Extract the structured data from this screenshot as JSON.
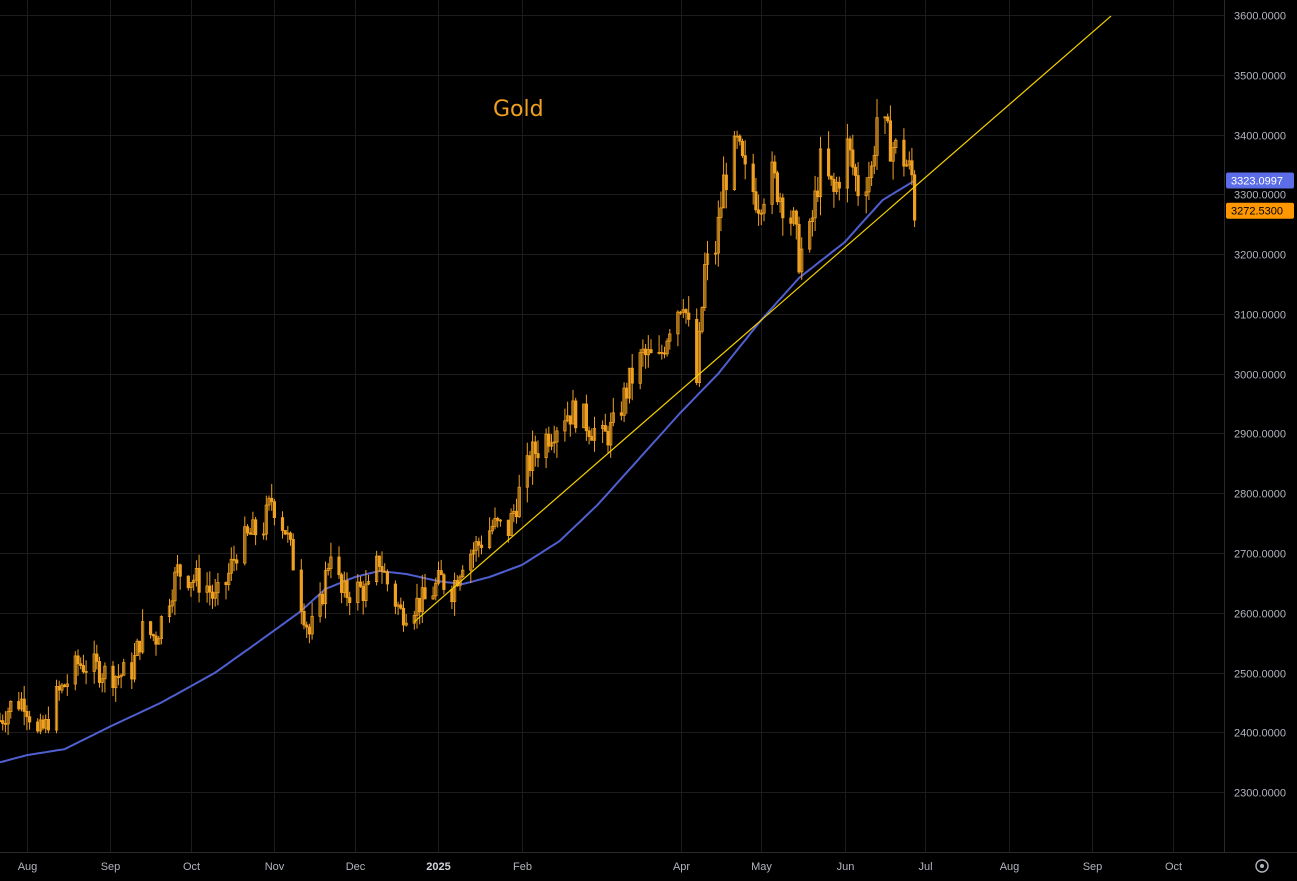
{
  "chart_data": {
    "type": "candlestick",
    "title": "Gold",
    "y_ticks": [
      2300,
      2400,
      2500,
      2600,
      2700,
      2800,
      2900,
      3000,
      3100,
      3200,
      3300,
      3400,
      3500,
      3600
    ],
    "y_tick_labels": [
      "2300.0000",
      "2400.0000",
      "2500.0000",
      "2600.0000",
      "2700.0000",
      "2800.0000",
      "2900.0000",
      "3000.0000",
      "3100.0000",
      "3200.0000",
      "3300.0000",
      "3400.0000",
      "3500.0000",
      "3600.0000"
    ],
    "ylim": [
      2200,
      3625
    ],
    "x_range": [
      "2024-07-22",
      "2025-10-20"
    ],
    "x_ticks": [
      {
        "date": "2024-08-01",
        "label": "Aug"
      },
      {
        "date": "2024-09-01",
        "label": "Sep"
      },
      {
        "date": "2024-10-01",
        "label": "Oct"
      },
      {
        "date": "2024-11-01",
        "label": "Nov"
      },
      {
        "date": "2024-12-01",
        "label": "Dec"
      },
      {
        "date": "2025-01-01",
        "label": "2025",
        "bold": true
      },
      {
        "date": "2025-02-01",
        "label": "Feb"
      },
      {
        "date": "2025-04-01",
        "label": "Apr"
      },
      {
        "date": "2025-05-01",
        "label": "May"
      },
      {
        "date": "2025-06-01",
        "label": "Jun"
      },
      {
        "date": "2025-07-01",
        "label": "Jul"
      },
      {
        "date": "2025-08-01",
        "label": "Aug"
      },
      {
        "date": "2025-09-01",
        "label": "Sep"
      },
      {
        "date": "2025-10-01",
        "label": "Oct"
      }
    ],
    "price_close_series": [
      [
        "2024-07-22",
        2420
      ],
      [
        "2024-07-26",
        2445
      ],
      [
        "2024-07-31",
        2455
      ],
      [
        "2024-08-05",
        2395
      ],
      [
        "2024-08-08",
        2410
      ],
      [
        "2024-08-12",
        2460
      ],
      [
        "2024-08-16",
        2485
      ],
      [
        "2024-08-20",
        2515
      ],
      [
        "2024-08-26",
        2510
      ],
      [
        "2024-08-30",
        2500
      ],
      [
        "2024-09-04",
        2495
      ],
      [
        "2024-09-09",
        2505
      ],
      [
        "2024-09-13",
        2570
      ],
      [
        "2024-09-18",
        2560
      ],
      [
        "2024-09-23",
        2630
      ],
      [
        "2024-09-26",
        2670
      ],
      [
        "2024-10-01",
        2660
      ],
      [
        "2024-10-07",
        2645
      ],
      [
        "2024-10-10",
        2620
      ],
      [
        "2024-10-14",
        2650
      ],
      [
        "2024-10-18",
        2705
      ],
      [
        "2024-10-23",
        2730
      ],
      [
        "2024-10-28",
        2745
      ],
      [
        "2024-10-31",
        2790
      ],
      [
        "2024-11-05",
        2740
      ],
      [
        "2024-11-08",
        2685
      ],
      [
        "2024-11-11",
        2620
      ],
      [
        "2024-11-14",
        2565
      ],
      [
        "2024-11-18",
        2610
      ],
      [
        "2024-11-22",
        2710
      ],
      [
        "2024-11-26",
        2630
      ],
      [
        "2024-12-02",
        2640
      ],
      [
        "2024-12-06",
        2635
      ],
      [
        "2024-12-10",
        2690
      ],
      [
        "2024-12-13",
        2650
      ],
      [
        "2024-12-18",
        2600
      ],
      [
        "2024-12-23",
        2615
      ],
      [
        "2024-12-27",
        2620
      ],
      [
        "2025-01-02",
        2655
      ],
      [
        "2025-01-06",
        2640
      ],
      [
        "2025-01-10",
        2690
      ],
      [
        "2025-01-16",
        2715
      ],
      [
        "2025-01-21",
        2745
      ],
      [
        "2025-01-27",
        2740
      ],
      [
        "2025-01-31",
        2800
      ],
      [
        "2025-02-05",
        2865
      ],
      [
        "2025-02-11",
        2900
      ],
      [
        "2025-02-17",
        2935
      ],
      [
        "2025-02-21",
        2935
      ],
      [
        "2025-02-26",
        2915
      ],
      [
        "2025-03-03",
        2890
      ],
      [
        "2025-03-07",
        2910
      ],
      [
        "2025-03-13",
        2985
      ],
      [
        "2025-03-18",
        3030
      ],
      [
        "2025-03-24",
        3020
      ],
      [
        "2025-03-28",
        3085
      ],
      [
        "2025-04-02",
        3130
      ],
      [
        "2025-04-07",
        2985
      ],
      [
        "2025-04-10",
        3175
      ],
      [
        "2025-04-14",
        3210
      ],
      [
        "2025-04-17",
        3320
      ],
      [
        "2025-04-22",
        3380
      ],
      [
        "2025-04-25",
        3330
      ],
      [
        "2025-04-30",
        3290
      ],
      [
        "2025-05-05",
        3330
      ],
      [
        "2025-05-08",
        3300
      ],
      [
        "2025-05-13",
        3250
      ],
      [
        "2025-05-15",
        3195
      ],
      [
        "2025-05-19",
        3230
      ],
      [
        "2025-05-23",
        3350
      ],
      [
        "2025-05-28",
        3300
      ],
      [
        "2025-06-02",
        3380
      ],
      [
        "2025-06-06",
        3310
      ],
      [
        "2025-06-11",
        3340
      ],
      [
        "2025-06-13",
        3430
      ],
      [
        "2025-06-18",
        3385
      ],
      [
        "2025-06-23",
        3360
      ],
      [
        "2025-06-26",
        3330
      ],
      [
        "2025-06-27",
        3272.53
      ]
    ],
    "moving_average_series": [
      [
        "2024-07-22",
        2350
      ],
      [
        "2024-08-01",
        2362
      ],
      [
        "2024-08-15",
        2372
      ],
      [
        "2024-09-01",
        2410
      ],
      [
        "2024-09-20",
        2450
      ],
      [
        "2024-10-10",
        2500
      ],
      [
        "2024-10-25",
        2548
      ],
      [
        "2024-11-10",
        2600
      ],
      [
        "2024-11-20",
        2640
      ],
      [
        "2024-12-01",
        2660
      ],
      [
        "2024-12-10",
        2670
      ],
      [
        "2024-12-20",
        2665
      ],
      [
        "2025-01-01",
        2653
      ],
      [
        "2025-01-10",
        2648
      ],
      [
        "2025-01-20",
        2660
      ],
      [
        "2025-02-01",
        2680
      ],
      [
        "2025-02-15",
        2720
      ],
      [
        "2025-03-01",
        2780
      ],
      [
        "2025-03-15",
        2850
      ],
      [
        "2025-04-01",
        2935
      ],
      [
        "2025-04-15",
        3000
      ],
      [
        "2025-05-01",
        3090
      ],
      [
        "2025-05-15",
        3160
      ],
      [
        "2025-06-01",
        3220
      ],
      [
        "2025-06-15",
        3290
      ],
      [
        "2025-06-27",
        3323.0997
      ]
    ],
    "trendline": {
      "start": [
        "2024-12-23",
        2585
      ],
      "end": [
        "2025-09-08",
        3598
      ]
    },
    "last_values": {
      "moving_average": {
        "value": 3323.0997,
        "label": "3323.0997",
        "color": "#5b6ee8"
      },
      "price": {
        "value": 3272.53,
        "label": "3272.5300",
        "color": "#ff9800"
      }
    },
    "grid": true,
    "colors": {
      "background": "#000000",
      "candle": "#f0a020",
      "moving_average": "#4f5fd0",
      "trendline": "#f5d000",
      "grid": "#1c1c1c",
      "axis_text": "#b2b5be"
    }
  },
  "ui": {
    "settings_icon": "gear-icon"
  }
}
